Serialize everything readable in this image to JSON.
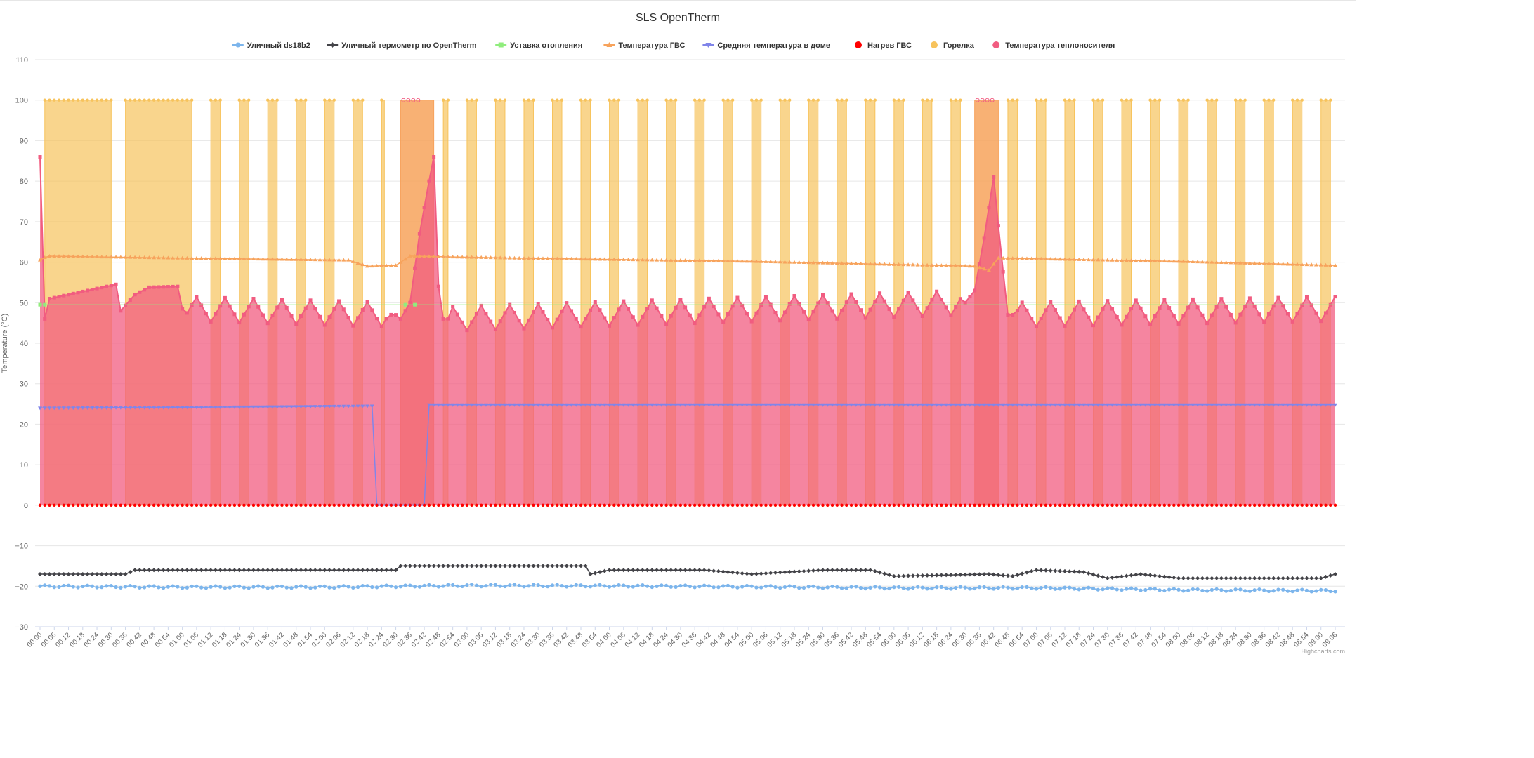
{
  "chart_data": {
    "type": "area",
    "title": "SLS OpenTherm",
    "ylabel": "Temperature (°C)",
    "ylim": [
      -30,
      110
    ],
    "yticks": [
      110,
      100,
      90,
      80,
      70,
      60,
      50,
      40,
      30,
      20,
      10,
      0,
      -10,
      -20,
      -30
    ],
    "grid": true,
    "legend_position": "top-center",
    "credits": "Highcharts.com",
    "x_step_minutes": 2,
    "x_start": "00:00",
    "x_end": "09:06",
    "x_tick_every_minutes": 6,
    "series": [
      {
        "name": "Уличный ds18b2",
        "color": "#7cb5ec",
        "marker": "circle",
        "type": "line",
        "keypoints": [
          [
            0,
            -20
          ],
          [
            60,
            -20.2
          ],
          [
            120,
            -20.2
          ],
          [
            180,
            -19.8
          ],
          [
            240,
            -19.9
          ],
          [
            300,
            -20.1
          ],
          [
            360,
            -20.4
          ],
          [
            420,
            -20.4
          ],
          [
            480,
            -20.9
          ],
          [
            546,
            -21.1
          ]
        ]
      },
      {
        "name": "Уличный термометр по OpenTherm",
        "color": "#434348",
        "marker": "diamond",
        "type": "line",
        "keypoints": [
          [
            0,
            -17
          ],
          [
            36,
            -17
          ],
          [
            40,
            -16
          ],
          [
            150,
            -16
          ],
          [
            152,
            -15
          ],
          [
            230,
            -15
          ],
          [
            232,
            -17
          ],
          [
            240,
            -16
          ],
          [
            280,
            -16
          ],
          [
            300,
            -17
          ],
          [
            330,
            -16
          ],
          [
            350,
            -16
          ],
          [
            360,
            -17.5
          ],
          [
            400,
            -17
          ],
          [
            410,
            -17.5
          ],
          [
            420,
            -16
          ],
          [
            440,
            -16.5
          ],
          [
            450,
            -18
          ],
          [
            464,
            -17
          ],
          [
            480,
            -18
          ],
          [
            540,
            -18
          ],
          [
            546,
            -17
          ]
        ]
      },
      {
        "name": "Уставка отопления",
        "color": "#90ed7d",
        "marker": "square",
        "type": "line",
        "keypoints": [
          [
            0,
            49.5
          ],
          [
            546,
            49.5
          ]
        ]
      },
      {
        "name": "Температура ГВС",
        "color": "#f7a35c",
        "marker": "triangle",
        "type": "line",
        "keypoints": [
          [
            0,
            60.5
          ],
          [
            3,
            61.5
          ],
          [
            60,
            61
          ],
          [
            130,
            60.5
          ],
          [
            138,
            59
          ],
          [
            150,
            59.2
          ],
          [
            156,
            61.5
          ],
          [
            200,
            61
          ],
          [
            300,
            60.2
          ],
          [
            394,
            59
          ],
          [
            400,
            58
          ],
          [
            404,
            61
          ],
          [
            480,
            60.2
          ],
          [
            546,
            59.2
          ]
        ]
      },
      {
        "name": "Средняя температура в доме",
        "color": "#8085e9",
        "marker": "triangle-down",
        "type": "line",
        "keypoints": [
          [
            0,
            24
          ],
          [
            100,
            24.3
          ],
          [
            140,
            24.5
          ],
          [
            142,
            0
          ],
          [
            162,
            0
          ],
          [
            164,
            24.8
          ],
          [
            546,
            24.8
          ]
        ]
      },
      {
        "name": "Нагрев ГВС",
        "color": "#f15c80",
        "marker": "circle",
        "type": "area",
        "dot_color": "#ff0000",
        "on_intervals": [
          [
            152,
            166
          ],
          [
            394,
            404
          ]
        ],
        "on_value": 100
      },
      {
        "name": "Горелка",
        "color": "#f7c35c",
        "marker": "circle",
        "type": "area",
        "on_value": 100
      },
      {
        "name": "Температура теплоносителя",
        "color": "#f15c80",
        "marker": "square",
        "type": "area",
        "keypoints": [
          [
            0,
            86
          ],
          [
            2,
            46
          ],
          [
            4,
            51
          ],
          [
            20,
            53
          ],
          [
            32,
            54.5
          ],
          [
            34,
            48
          ],
          [
            40,
            52
          ],
          [
            46,
            53.8
          ],
          [
            58,
            54
          ],
          [
            60,
            48.5
          ],
          [
            150,
            47
          ],
          [
            152,
            46
          ],
          [
            156,
            50
          ],
          [
            160,
            67
          ],
          [
            164,
            80
          ],
          [
            166,
            86
          ],
          [
            168,
            54
          ],
          [
            170,
            46
          ],
          [
            390,
            50
          ],
          [
            394,
            53
          ],
          [
            398,
            66
          ],
          [
            402,
            81
          ],
          [
            405,
            63
          ],
          [
            408,
            47
          ],
          [
            546,
            48.5
          ]
        ]
      }
    ]
  }
}
